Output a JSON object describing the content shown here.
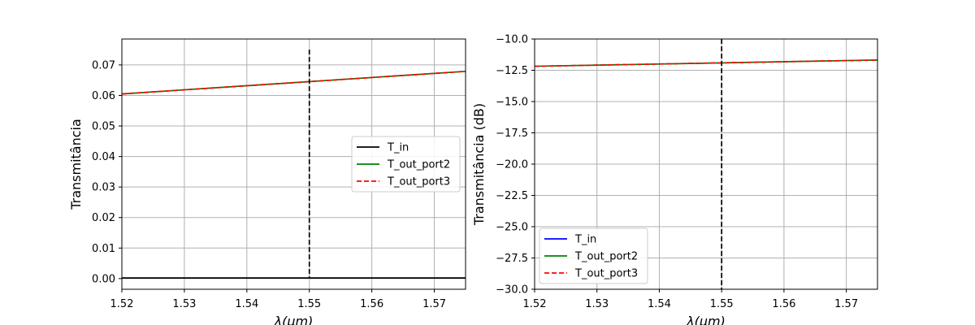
{
  "chart_data": [
    {
      "type": "line",
      "xlabel": "λ(μm)",
      "ylabel": "Transmitância",
      "xlim": [
        1.52,
        1.575
      ],
      "ylim": [
        -0.0035,
        0.0785
      ],
      "xticks": [
        1.52,
        1.53,
        1.54,
        1.55,
        1.56,
        1.57
      ],
      "xtick_labels": [
        "1.52",
        "1.53",
        "1.54",
        "1.55",
        "1.56",
        "1.57"
      ],
      "yticks": [
        0.0,
        0.01,
        0.02,
        0.03,
        0.04,
        0.05,
        0.06,
        0.07
      ],
      "ytick_labels": [
        "0.00",
        "0.01",
        "0.02",
        "0.03",
        "0.04",
        "0.05",
        "0.06",
        "0.07"
      ],
      "grid": true,
      "legend_position": "center-right",
      "vline": {
        "x": 1.55,
        "y_range": [
          0.0,
          0.075
        ],
        "color": "#000000",
        "style": "dashed"
      },
      "series": [
        {
          "name": "T_in",
          "color": "#000000",
          "style": "solid",
          "x": [
            1.52,
            1.575
          ],
          "y": [
            0.0002,
            0.0002
          ]
        },
        {
          "name": "T_out_port2",
          "color": "#008000",
          "style": "solid",
          "x": [
            1.52,
            1.575
          ],
          "y": [
            0.0605,
            0.0679
          ]
        },
        {
          "name": "T_out_port3",
          "color": "#ff0000",
          "style": "dashed",
          "x": [
            1.52,
            1.575
          ],
          "y": [
            0.0605,
            0.0679
          ]
        }
      ]
    },
    {
      "type": "line",
      "xlabel": "λ(μm)",
      "ylabel": "Transmitância (dB)",
      "xlim": [
        1.52,
        1.575
      ],
      "ylim": [
        -30.0,
        -10.0
      ],
      "xticks": [
        1.52,
        1.53,
        1.54,
        1.55,
        1.56,
        1.57
      ],
      "xtick_labels": [
        "1.52",
        "1.53",
        "1.54",
        "1.55",
        "1.56",
        "1.57"
      ],
      "yticks": [
        -30.0,
        -27.5,
        -25.0,
        -22.5,
        -20.0,
        -17.5,
        -15.0,
        -12.5,
        -10.0
      ],
      "ytick_labels": [
        "−30.0",
        "−27.5",
        "−25.0",
        "−22.5",
        "−20.0",
        "−17.5",
        "−15.0",
        "−12.5",
        "−10.0"
      ],
      "grid": true,
      "legend_position": "lower-left",
      "vline": {
        "x": 1.55,
        "y_range": [
          -30.0,
          -10.0
        ],
        "color": "#000000",
        "style": "dashed"
      },
      "series": [
        {
          "name": "T_in",
          "color": "#0000ff",
          "style": "solid",
          "x": [],
          "y": []
        },
        {
          "name": "T_out_port2",
          "color": "#008000",
          "style": "solid",
          "x": [
            1.52,
            1.575
          ],
          "y": [
            -12.18,
            -11.68
          ]
        },
        {
          "name": "T_out_port3",
          "color": "#ff0000",
          "style": "dashed",
          "x": [
            1.52,
            1.575
          ],
          "y": [
            -12.18,
            -11.68
          ]
        }
      ]
    }
  ]
}
